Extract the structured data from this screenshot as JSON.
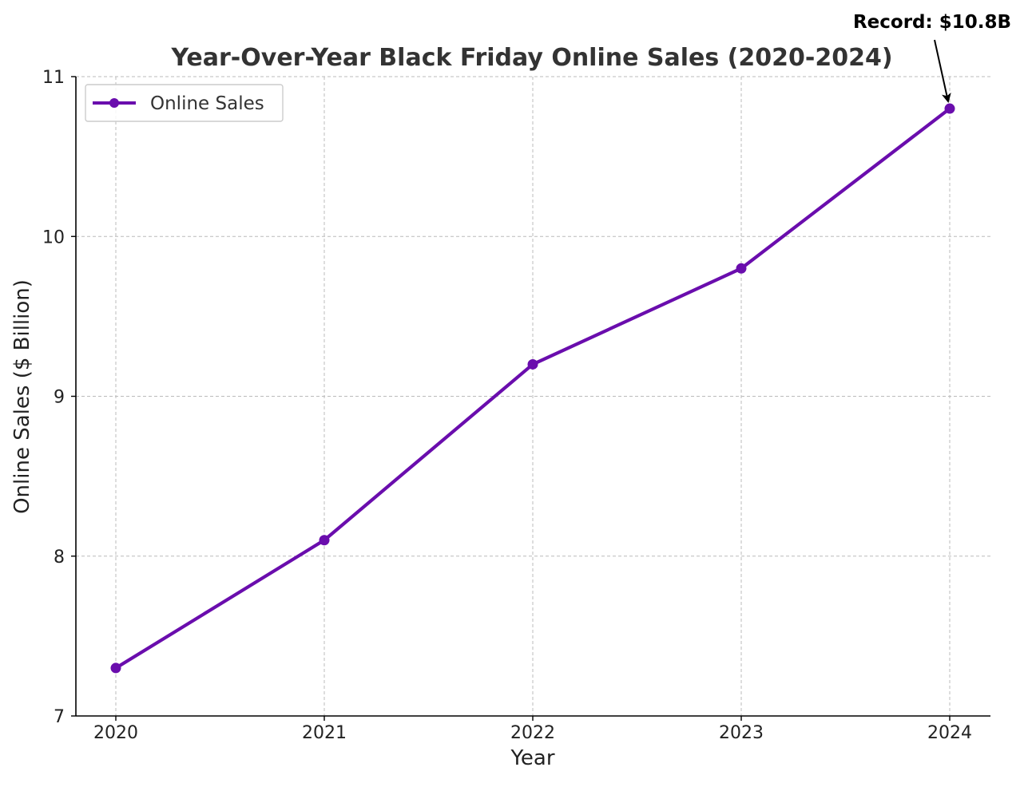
{
  "chart_data": {
    "type": "line",
    "title": "Year-Over-Year Black Friday Online Sales (2020-2024)",
    "xlabel": "Year",
    "ylabel": "Online Sales ($ Billion)",
    "categories": [
      "2020",
      "2021",
      "2022",
      "2023",
      "2024"
    ],
    "series": [
      {
        "name": "Online Sales",
        "values": [
          7.3,
          8.1,
          9.2,
          9.8,
          10.8
        ],
        "color": "#6a0dad",
        "marker": "circle"
      }
    ],
    "ylim": [
      7,
      11
    ],
    "yticks": [
      7,
      8,
      9,
      10,
      11
    ],
    "grid": true,
    "grid_style": "dashed",
    "legend_position": "top-left",
    "annotation": {
      "text": "Record: $10.8B",
      "target_category": "2024",
      "target_value": 10.8,
      "arrow": true
    }
  }
}
